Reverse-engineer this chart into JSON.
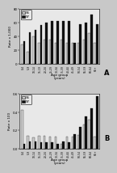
{
  "chart_A": {
    "ylabel": "Rate x 1,000",
    "xlabel": "Age group\n(years)",
    "ylim": [
      0,
      80
    ],
    "yticks": [
      0,
      20,
      40,
      60,
      80
    ],
    "label": "A",
    "age_groups": [
      "0-4",
      "5-9",
      "10-14",
      "15-19",
      "20-24",
      "25-29",
      "30-34",
      "35-39",
      "40-44",
      "45-49",
      "50-54",
      "55-59",
      "60-64",
      "65+"
    ],
    "values_96": [
      28,
      18,
      40,
      30,
      35,
      35,
      30,
      35,
      30,
      30,
      30,
      35,
      45,
      30
    ],
    "values_97": [
      33,
      46,
      50,
      56,
      60,
      62,
      63,
      63,
      62,
      30,
      58,
      60,
      72,
      58
    ],
    "color_96": "#cccccc",
    "color_97": "#111111",
    "legend_96": "96",
    "legend_97": "97"
  },
  "chart_B": {
    "ylabel": "Rate x 100",
    "xlabel": "Age group\n(years)",
    "ylim": [
      0,
      0.6
    ],
    "yticks": [
      0.0,
      0.2,
      0.4,
      0.6
    ],
    "label": "B",
    "age_groups": [
      "0-4",
      "5-9",
      "10-14",
      "15-19",
      "20-24",
      "25-29",
      "30-34",
      "35-39",
      "40-44",
      "45-49",
      "50-54",
      "55-59",
      "60-64",
      "65+"
    ],
    "values_96": [
      0.42,
      0.14,
      0.12,
      0.14,
      0.14,
      0.13,
      0.13,
      0.05,
      0.13,
      0.13,
      0.15,
      0.26,
      0.32,
      0.13
    ],
    "values_97": [
      0.05,
      0.08,
      0.08,
      0.07,
      0.07,
      0.07,
      0.05,
      0.08,
      0.07,
      0.16,
      0.24,
      0.35,
      0.44,
      0.57
    ],
    "color_96": "#cccccc",
    "color_97": "#111111",
    "legend_96": "96",
    "legend_97": "97"
  },
  "bg_color": "#c8c8c8",
  "panel_bg": "#e8e8e8"
}
